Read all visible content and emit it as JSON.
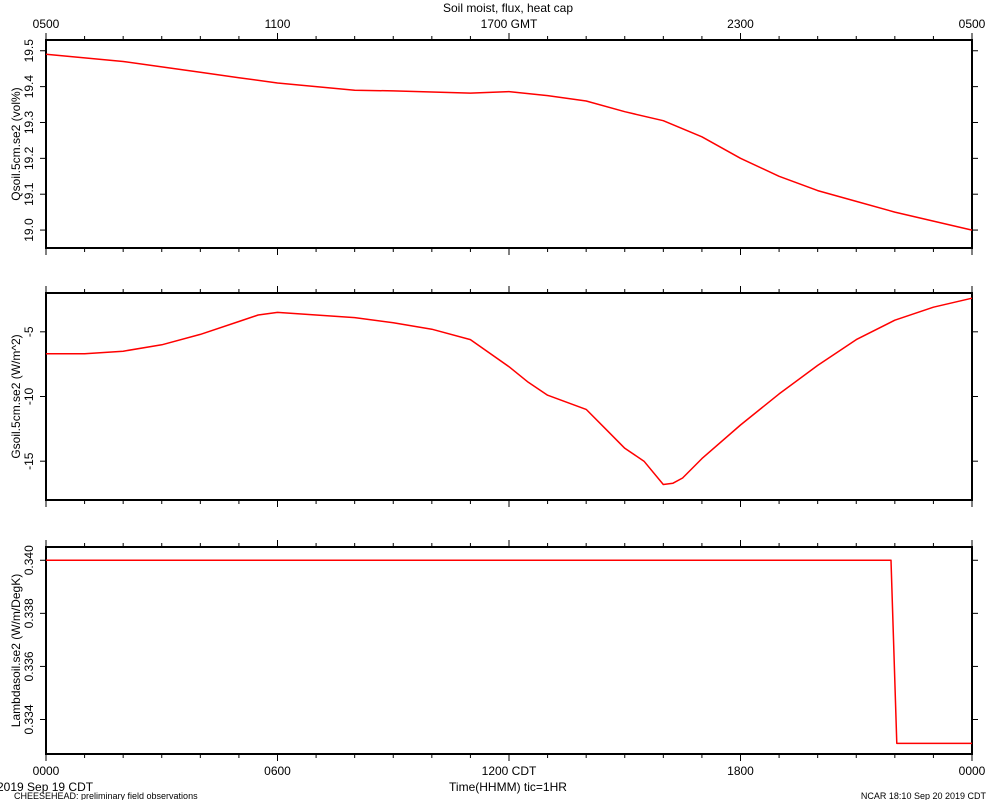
{
  "figure": {
    "title": "Soil moist, flux, heat cap",
    "footer_date": "2019 Sep 19 CDT",
    "footer_project": "CHEESEHEAD: preliminary field observations",
    "footer_stamp": "NCAR 18:10 Sep 20 2019 CDT",
    "xlabel": "Time(HHMM)  tic=1HR"
  },
  "chart_data": [
    {
      "type": "line",
      "ylabel": "Qsoil.5cm.se2 (vol%)",
      "ylim": [
        18.95,
        19.53
      ],
      "yticks": [
        19.0,
        19.1,
        19.2,
        19.3,
        19.4,
        19.5
      ],
      "ytick_labels": [
        "19.0",
        "19.1",
        "19.2",
        "19.3",
        "19.4",
        "19.5"
      ],
      "x_hours": [
        0,
        1,
        2,
        3,
        4,
        5,
        6,
        7,
        8,
        9,
        10,
        11,
        12,
        13,
        14,
        15,
        16,
        17,
        18,
        19,
        20,
        21,
        22,
        23,
        24
      ],
      "values": [
        19.49,
        19.48,
        19.47,
        19.455,
        19.44,
        19.425,
        19.41,
        19.4,
        19.39,
        19.388,
        19.385,
        19.382,
        19.386,
        19.375,
        19.36,
        19.33,
        19.305,
        19.26,
        19.2,
        19.15,
        19.11,
        19.08,
        19.05,
        19.025,
        19.0
      ],
      "color": "#ff0000"
    },
    {
      "type": "line",
      "ylabel": "Gsoil.5cm.se2 (W/m^2)",
      "ylim": [
        -18.0,
        -2.0
      ],
      "yticks": [
        -5,
        -10,
        -15
      ],
      "ytick_labels": [
        "-5",
        "-10",
        "-15"
      ],
      "x_hours": [
        0,
        1,
        2,
        3,
        4,
        5,
        5.5,
        6,
        7,
        8,
        9,
        10,
        11,
        12,
        12.5,
        13,
        14,
        14.5,
        15,
        15.5,
        16,
        16.25,
        16.5,
        17,
        18,
        19,
        20,
        21,
        22,
        23,
        24
      ],
      "values": [
        -6.7,
        -6.7,
        -6.5,
        -6.0,
        -5.2,
        -4.2,
        -3.7,
        -3.5,
        -3.7,
        -3.9,
        -4.3,
        -4.8,
        -5.6,
        -7.7,
        -8.9,
        -9.9,
        -11.0,
        -12.5,
        -14.0,
        -15.0,
        -16.8,
        -16.7,
        -16.3,
        -14.8,
        -12.2,
        -9.8,
        -7.6,
        -5.6,
        -4.1,
        -3.1,
        -2.4
      ],
      "color": "#ff0000"
    },
    {
      "type": "line",
      "ylabel": "Lambdasoil.se2 (W/m/DegK)",
      "ylim": [
        0.3327,
        0.3405
      ],
      "yticks": [
        0.334,
        0.336,
        0.338,
        0.34
      ],
      "ytick_labels": [
        "0.334",
        "0.336",
        "0.338",
        "0.340"
      ],
      "x_hours": [
        0,
        21.9,
        22.05,
        24
      ],
      "values": [
        0.34,
        0.34,
        0.3331,
        0.3331
      ],
      "color": "#ff0000"
    }
  ],
  "x_axis": {
    "range_hours": [
      0,
      24
    ],
    "bottom_ticks": [
      0,
      6,
      12,
      18,
      24
    ],
    "bottom_labels": [
      "0000",
      "0600",
      "1200 CDT",
      "1800",
      "0000"
    ],
    "top_ticks": [
      0,
      6,
      12,
      18,
      24
    ],
    "top_labels": [
      "0500",
      "1100",
      "1700 GMT",
      "2300",
      "0500"
    ]
  }
}
